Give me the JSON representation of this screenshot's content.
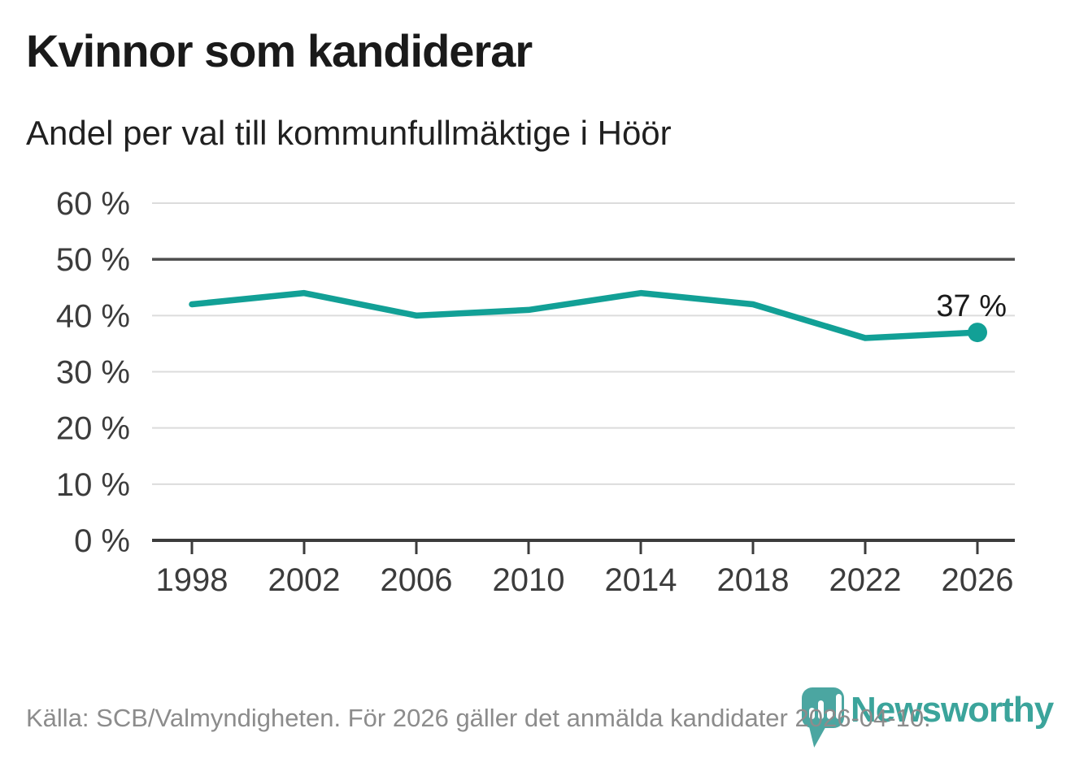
{
  "header": {
    "title": "Kvinnor som kandiderar",
    "subtitle": "Andel per val till kommunfullmäktige i Höör"
  },
  "chart_data": {
    "type": "line",
    "title": "Kvinnor som kandiderar",
    "subtitle": "Andel per val till kommunfullmäktige i Höör",
    "categories": [
      "1998",
      "2002",
      "2006",
      "2010",
      "2014",
      "2018",
      "2022",
      "2026"
    ],
    "series": [
      {
        "name": "Kvinnor som kandiderar",
        "values": [
          42,
          44,
          40,
          41,
          44,
          42,
          36,
          37
        ]
      }
    ],
    "unit": "%",
    "ylim": [
      0,
      60
    ],
    "ytick_step": 10,
    "ytick_suffix": " %",
    "ytick_labels": [
      "0 %",
      "10 %",
      "20 %",
      "30 %",
      "40 %",
      "50 %",
      "60 %"
    ],
    "benchmark_value": 50,
    "last_point_label": "37 %",
    "grid": true,
    "legend_position": "none",
    "colors": {
      "line": "#12a096",
      "grid": "#dcdcdc",
      "benchmark": "#4d4d4d",
      "axis": "#3c3c3c",
      "tick_text": "#3c3c3c",
      "annotation": "#1a1a1a"
    }
  },
  "footer": {
    "source": "Källa: SCB/Valmyndigheten. För 2026 gäller det anmälda kandidater 2026-04-10.",
    "logo_text": "Newsworthy",
    "logo_text_color": "#3ba49b",
    "logo_mark_color": "#4ba6a1"
  }
}
